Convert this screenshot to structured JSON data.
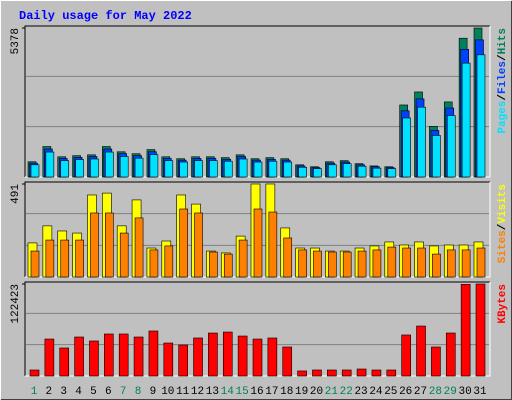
{
  "title": "Daily usage for May 2022",
  "legend_separator": "/",
  "categories": [
    "1",
    "2",
    "3",
    "4",
    "5",
    "6",
    "7",
    "8",
    "9",
    "10",
    "11",
    "12",
    "13",
    "14",
    "15",
    "16",
    "17",
    "18",
    "19",
    "20",
    "21",
    "22",
    "23",
    "24",
    "25",
    "26",
    "27",
    "28",
    "29",
    "30",
    "31"
  ],
  "weekend_days": [
    "1",
    "7",
    "8",
    "14",
    "15",
    "21",
    "22",
    "28",
    "29"
  ],
  "weekend_color": "#00805c",
  "chart_data": [
    {
      "type": "bar",
      "ylim": [
        0,
        5378
      ],
      "yticks": [
        5378
      ],
      "series": [
        {
          "name": "Hits",
          "color": "#00805c",
          "values": [
            550,
            1100,
            730,
            770,
            800,
            1100,
            910,
            840,
            990,
            730,
            660,
            730,
            730,
            700,
            800,
            660,
            700,
            660,
            440,
            370,
            550,
            590,
            480,
            400,
            370,
            2600,
            3070,
            1830,
            2710,
            5010,
            5378
          ]
        },
        {
          "name": "Files",
          "color": "#0040ff",
          "values": [
            500,
            1010,
            670,
            710,
            740,
            1010,
            840,
            770,
            910,
            670,
            610,
            670,
            670,
            640,
            740,
            610,
            640,
            610,
            400,
            340,
            500,
            540,
            440,
            370,
            340,
            2390,
            2820,
            1680,
            2490,
            4610,
            4950
          ]
        },
        {
          "name": "Pages",
          "color": "#00e0ff",
          "values": [
            440,
            900,
            590,
            630,
            650,
            900,
            740,
            680,
            810,
            590,
            540,
            590,
            590,
            570,
            650,
            540,
            570,
            540,
            350,
            300,
            440,
            480,
            390,
            320,
            300,
            2130,
            2520,
            1500,
            2220,
            4110,
            4410
          ]
        }
      ]
    },
    {
      "type": "bar",
      "ylim": [
        0,
        491
      ],
      "yticks": [
        491
      ],
      "series": [
        {
          "name": "Visits",
          "color": "#ffff00",
          "values": [
            180,
            270,
            243,
            232,
            433,
            443,
            270,
            407,
            153,
            190,
            433,
            385,
            137,
            127,
            216,
            491,
            491,
            259,
            153,
            153,
            137,
            137,
            153,
            164,
            185,
            169,
            185,
            164,
            169,
            169,
            185
          ]
        },
        {
          "name": "Sites",
          "color": "#ff8000",
          "values": [
            137,
            195,
            195,
            195,
            338,
            338,
            232,
            312,
            143,
            164,
            359,
            338,
            132,
            121,
            195,
            359,
            343,
            206,
            143,
            137,
            132,
            132,
            137,
            143,
            158,
            153,
            153,
            121,
            143,
            143,
            153
          ]
        }
      ]
    },
    {
      "type": "bar",
      "ylim": [
        0,
        122423
      ],
      "yticks": [
        122423
      ],
      "series": [
        {
          "name": "KBytes",
          "color": "#ff0000",
          "values": [
            8000,
            49200,
            37300,
            51900,
            46600,
            55900,
            55900,
            51900,
            59900,
            43900,
            41300,
            50600,
            57200,
            58500,
            53200,
            49200,
            50600,
            38600,
            6700,
            8000,
            8000,
            8000,
            9300,
            8000,
            8000,
            54600,
            66500,
            38600,
            57200,
            122000,
            122423
          ]
        }
      ]
    }
  ]
}
